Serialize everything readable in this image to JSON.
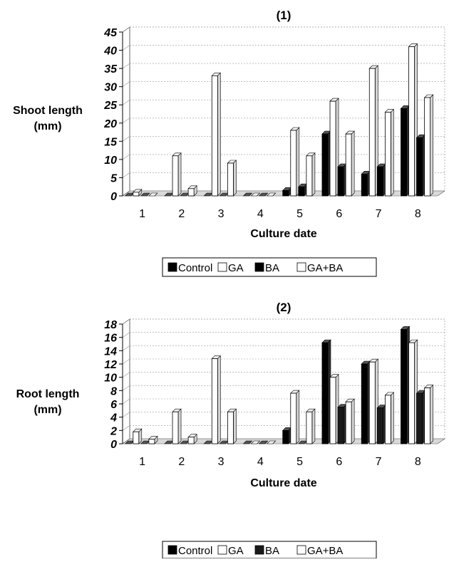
{
  "chart_data": [
    {
      "type": "bar",
      "title": "(1)",
      "xlabel": "Culture date",
      "ylabel": "Shoot length\n(mm)",
      "ylim": [
        0,
        45
      ],
      "yticks": [
        "0",
        "5",
        "10",
        "15",
        "20",
        "25",
        "30",
        "35",
        "40",
        "45"
      ],
      "categories": [
        "1",
        "2",
        "3",
        "4",
        "5",
        "6",
        "7",
        "8"
      ],
      "grid": true,
      "legend_position": "bottom",
      "series": [
        {
          "name": "Control",
          "color": "#000000",
          "values": [
            0,
            0,
            0,
            0,
            1.5,
            17,
            6,
            24
          ]
        },
        {
          "name": "GA",
          "color": "#ffffff",
          "values": [
            1,
            11,
            33,
            0,
            18,
            26,
            35,
            41
          ]
        },
        {
          "name": "BA",
          "color": "#000000",
          "values": [
            0,
            0,
            0,
            0,
            2.5,
            8,
            8,
            16
          ]
        },
        {
          "name": "GA+BA",
          "color": "#ffffff",
          "values": [
            0,
            2,
            9,
            0,
            11,
            17,
            23,
            27
          ]
        }
      ]
    },
    {
      "type": "bar",
      "title": "(2)",
      "xlabel": "Culture date",
      "ylabel": "Root length\n(mm)",
      "ylim": [
        0,
        18
      ],
      "yticks": [
        "0",
        "2",
        "4",
        "6",
        "8",
        "10",
        "12",
        "14",
        "16",
        "18"
      ],
      "categories": [
        "1",
        "2",
        "3",
        "4",
        "5",
        "6",
        "7",
        "8"
      ],
      "grid": true,
      "legend_position": "bottom",
      "series": [
        {
          "name": "Control",
          "color": "#000000",
          "values": [
            0,
            0,
            0,
            0,
            2,
            15.2,
            12,
            17.2
          ]
        },
        {
          "name": "GA",
          "color": "#ffffff",
          "values": [
            1.8,
            4.8,
            12.8,
            0,
            7.6,
            10,
            12.3,
            15.2
          ]
        },
        {
          "name": "BA",
          "color": "#1a1a1a",
          "values": [
            0,
            0,
            0,
            0,
            0,
            5.5,
            5.4,
            7.6
          ]
        },
        {
          "name": "GA+BA",
          "color": "#ffffff",
          "values": [
            0.7,
            1,
            4.8,
            0,
            4.8,
            6.3,
            7.3,
            8.4
          ]
        }
      ]
    }
  ]
}
